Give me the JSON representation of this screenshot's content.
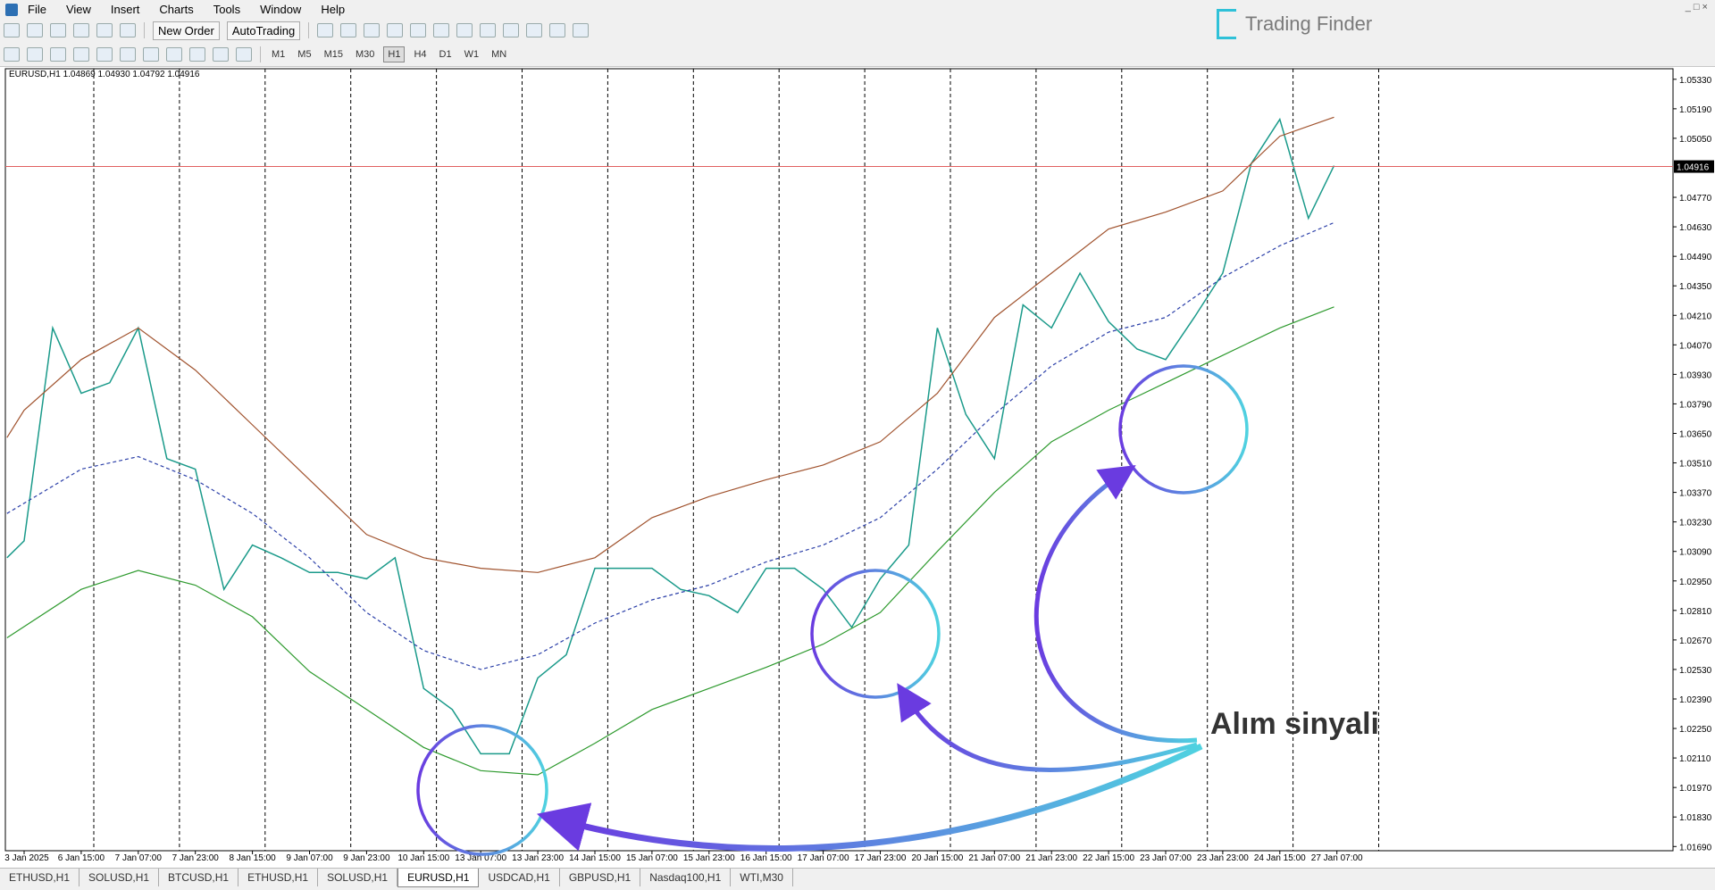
{
  "menu": [
    "File",
    "View",
    "Insert",
    "Charts",
    "Tools",
    "Window",
    "Help"
  ],
  "toolbar": {
    "buttons": [
      "New Order",
      "AutoTrading"
    ],
    "timeframes": [
      "M1",
      "M5",
      "M15",
      "M30",
      "H1",
      "H4",
      "D1",
      "W1",
      "MN"
    ],
    "active_timeframe": 4
  },
  "logo": "Trading Finder",
  "chart": {
    "symbol_info": "EURUSD,H1  1.04869 1.04930 1.04792 1.04916",
    "ylim": [
      1.0538,
      1.0167
    ],
    "time_labels": [
      "3 Jan 2025",
      "6 Jan 15:00",
      "7 Jan 07:00",
      "7 Jan 23:00",
      "8 Jan 15:00",
      "9 Jan 07:00",
      "9 Jan 23:00",
      "10 Jan 15:00",
      "13 Jan 07:00",
      "13 Jan 23:00",
      "14 Jan 15:00",
      "15 Jan 07:00",
      "15 Jan 23:00",
      "16 Jan 15:00",
      "17 Jan 07:00",
      "17 Jan 23:00",
      "20 Jan 15:00",
      "21 Jan 07:00",
      "21 Jan 23:00",
      "22 Jan 15:00",
      "23 Jan 07:00",
      "23 Jan 23:00",
      "24 Jan 15:00",
      "27 Jan 07:00"
    ],
    "price_ticks": [
      {
        "value": 1.0533,
        "label": "1.05330"
      },
      {
        "value": 1.0519,
        "label": "1.05190"
      },
      {
        "value": 1.0505,
        "label": "1.05050"
      },
      {
        "value": 1.0477,
        "label": "1.04770"
      },
      {
        "value": 1.0463,
        "label": "1.04630"
      },
      {
        "value": 1.0449,
        "label": "1.04490"
      },
      {
        "value": 1.0435,
        "label": "1.04350"
      },
      {
        "value": 1.0421,
        "label": "1.04210"
      },
      {
        "value": 1.0407,
        "label": "1.04070"
      },
      {
        "value": 1.0393,
        "label": "1.03930"
      },
      {
        "value": 1.0379,
        "label": "1.03790"
      },
      {
        "value": 1.0365,
        "label": "1.03650"
      },
      {
        "value": 1.0351,
        "label": "1.03510"
      },
      {
        "value": 1.0337,
        "label": "1.03370"
      },
      {
        "value": 1.0323,
        "label": "1.03230"
      },
      {
        "value": 1.0309,
        "label": "1.03090"
      },
      {
        "value": 1.0295,
        "label": "1.02950"
      },
      {
        "value": 1.0281,
        "label": "1.02810"
      },
      {
        "value": 1.0267,
        "label": "1.02670"
      },
      {
        "value": 1.0253,
        "label": "1.02530"
      },
      {
        "value": 1.0239,
        "label": "1.02390"
      },
      {
        "value": 1.0225,
        "label": "1.02250"
      },
      {
        "value": 1.0211,
        "label": "1.02110"
      },
      {
        "value": 1.0197,
        "label": "1.01970"
      },
      {
        "value": 1.0183,
        "label": "1.01830"
      },
      {
        "value": 1.0169,
        "label": "1.01690"
      }
    ],
    "current_price": {
      "value": 1.04916,
      "label": "1.04916"
    },
    "annotation": "Alım sinyali",
    "series": [
      {
        "kind": "price",
        "color": "#1a9a8a",
        "width": 1.5,
        "dashed": false,
        "x": [
          -0.3,
          0,
          0.5,
          1,
          1.5,
          2,
          2.5,
          3,
          3.5,
          4,
          4.5,
          5,
          5.5,
          6,
          6.5,
          7,
          7.5,
          8,
          8.5,
          9,
          9.5,
          10,
          10.5,
          11,
          11.5,
          12,
          12.5,
          13,
          13.5,
          14,
          14.5,
          15,
          15.5,
          16,
          16.5,
          17,
          17.5,
          18,
          18.5,
          19,
          19.5,
          20,
          20.5,
          21,
          21.5,
          22,
          22.5,
          22.95
        ],
        "values": [
          1.0306,
          1.0314,
          1.0415,
          1.0384,
          1.0389,
          1.0415,
          1.0353,
          1.0348,
          1.0291,
          1.0312,
          1.0306,
          1.0299,
          1.0299,
          1.0296,
          1.0306,
          1.0244,
          1.0234,
          1.0213,
          1.0213,
          1.0249,
          1.026,
          1.0301,
          1.0301,
          1.0301,
          1.0291,
          1.0288,
          1.028,
          1.0301,
          1.0301,
          1.0291,
          1.0273,
          1.0296,
          1.0312,
          1.0415,
          1.0374,
          1.0353,
          1.0426,
          1.0415,
          1.0441,
          1.0418,
          1.0405,
          1.04,
          1.042,
          1.0441,
          1.0493,
          1.0514,
          1.0467,
          1.0492
        ]
      },
      {
        "kind": "upper-band",
        "color": "#a0522d",
        "width": 1.2,
        "dashed": false,
        "x": [
          -0.3,
          0,
          1,
          2,
          3,
          4,
          5,
          6,
          7,
          8,
          9,
          10,
          11,
          12,
          13,
          14,
          15,
          16,
          17,
          18,
          19,
          20,
          21,
          22,
          22.95
        ],
        "values": [
          1.0363,
          1.0376,
          1.04,
          1.0415,
          1.0395,
          1.0369,
          1.0343,
          1.0317,
          1.0306,
          1.0301,
          1.0299,
          1.0306,
          1.0325,
          1.0335,
          1.0343,
          1.035,
          1.0361,
          1.0384,
          1.042,
          1.0441,
          1.0462,
          1.047,
          1.048,
          1.0506,
          1.0515
        ]
      },
      {
        "kind": "middle-band",
        "color": "#2b3fa8",
        "width": 1.2,
        "dashed": true,
        "x": [
          -0.3,
          1,
          2,
          3,
          4,
          5,
          6,
          7,
          8,
          9,
          10,
          11,
          12,
          13,
          14,
          15,
          16,
          17,
          18,
          19,
          20,
          21,
          22,
          22.95
        ],
        "values": [
          1.0327,
          1.0348,
          1.0354,
          1.0343,
          1.0327,
          1.0306,
          1.028,
          1.0262,
          1.0253,
          1.026,
          1.0275,
          1.0286,
          1.0293,
          1.0304,
          1.0312,
          1.0325,
          1.0348,
          1.0374,
          1.0397,
          1.0413,
          1.042,
          1.0439,
          1.0454,
          1.0465
        ]
      },
      {
        "kind": "lower-band",
        "color": "#2e9a2e",
        "width": 1.2,
        "dashed": false,
        "x": [
          -0.3,
          1,
          2,
          3,
          4,
          5,
          6,
          7,
          8,
          9,
          10,
          11,
          12,
          13,
          14,
          15,
          16,
          17,
          18,
          19,
          20,
          21,
          22,
          22.95
        ],
        "values": [
          1.0268,
          1.0291,
          1.03,
          1.0293,
          1.0278,
          1.0252,
          1.0234,
          1.0216,
          1.0205,
          1.0203,
          1.0218,
          1.0234,
          1.0244,
          1.0254,
          1.0265,
          1.028,
          1.0309,
          1.0337,
          1.0361,
          1.0376,
          1.0389,
          1.0402,
          1.0415,
          1.0425
        ]
      }
    ]
  },
  "tabs": [
    "ETHUSD,H1",
    "SOLUSD,H1",
    "BTCUSD,H1",
    "ETHUSD,H1",
    "SOLUSD,H1",
    "EURUSD,H1",
    "USDCAD,H1",
    "GBPUSD,H1",
    "Nasdaq100,H1",
    "WTI,M30"
  ],
  "active_tab": 5
}
